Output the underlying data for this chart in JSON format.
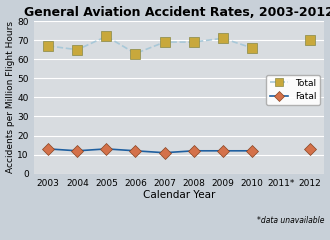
{
  "title": "General Aviation Accident Rates, 2003-2012",
  "xlabel": "Calendar Year",
  "ylabel": "Accidents per Million Flight Hours",
  "years": [
    2003,
    2004,
    2005,
    2006,
    2007,
    2008,
    2009,
    2010,
    2011,
    2012
  ],
  "year_labels": [
    "2003",
    "2004",
    "2005",
    "2006",
    "2007",
    "2008",
    "2009",
    "2010",
    "2011*",
    "2012"
  ],
  "total": [
    67,
    65,
    72,
    63,
    69,
    69,
    71,
    66,
    null,
    70
  ],
  "fatal": [
    13,
    12,
    13,
    12,
    11,
    12,
    12,
    12,
    null,
    13
  ],
  "total_color": "#c8a83c",
  "fatal_color": "#d4714a",
  "line_total_color": "#a8c8d8",
  "line_fatal_color": "#2060a0",
  "ylim": [
    0,
    80
  ],
  "yticks": [
    0,
    10,
    20,
    30,
    40,
    50,
    60,
    70,
    80
  ],
  "bg_color": "#c8d0d8",
  "plot_bg_color": "#d8dce0",
  "note": "*data unavailable",
  "legend_total": "Total",
  "legend_fatal": "Fatal"
}
